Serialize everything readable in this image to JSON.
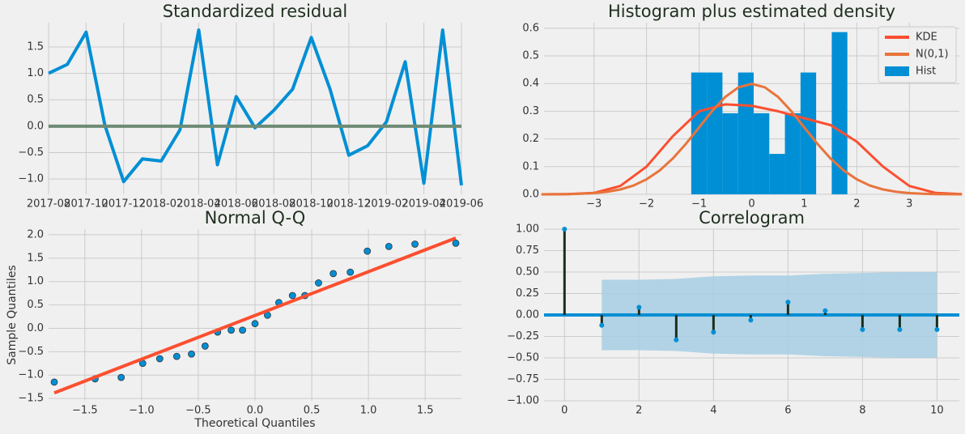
{
  "chart_data": [
    {
      "type": "line",
      "title": "Standardized residual",
      "x": [
        "2017-08",
        "2017-09",
        "2017-10",
        "2017-11",
        "2017-12",
        "2018-01",
        "2018-02",
        "2018-03",
        "2018-04",
        "2018-05",
        "2018-06",
        "2018-07",
        "2018-08",
        "2018-09",
        "2018-10",
        "2018-11",
        "2018-12",
        "2019-01",
        "2019-02",
        "2019-03",
        "2019-04",
        "2019-05",
        "2019-06"
      ],
      "series": [
        {
          "color": "#008fd5",
          "values": [
            1.0,
            1.17,
            1.78,
            0.02,
            -1.05,
            -0.62,
            -0.66,
            -0.07,
            1.82,
            -0.73,
            0.56,
            -0.03,
            0.3,
            0.7,
            1.68,
            0.7,
            -0.55,
            -0.37,
            0.08,
            1.22,
            -1.08,
            1.82,
            -1.12
          ]
        }
      ],
      "hline": 0,
      "hline_color": "#6d8b74",
      "xlim": [
        "2017-08",
        "2019-06"
      ],
      "xticks": [
        "2017-08",
        "2017-10",
        "2017-12",
        "2018-02",
        "2018-04",
        "2018-06",
        "2018-08",
        "2018-10",
        "2018-12",
        "2019-02",
        "2019-04",
        "2019-06"
      ],
      "ylim": [
        -1.29,
        1.96
      ],
      "yticks": [
        {
          "value": -1,
          "label": "−1.0"
        },
        {
          "value": -0.5,
          "label": "−0.5"
        },
        {
          "value": 0,
          "label": "0.0"
        },
        0.5,
        {
          "value": 1,
          "label": "1.0"
        },
        1.5
      ],
      "grid": true
    },
    {
      "type": "histogram",
      "title": "Histogram plus estimated density",
      "hist": {
        "name": "Hist",
        "color": "#008fd5",
        "bins": [
          -1.15,
          -0.853,
          -0.556,
          -0.259,
          0.038,
          0.335,
          0.632,
          0.929,
          1.226,
          1.523,
          1.82
        ],
        "values": [
          0.44,
          0.44,
          0.293,
          0.44,
          0.293,
          0.146,
          0.293,
          0.44,
          0,
          0.586
        ]
      },
      "series": [
        {
          "name": "KDE",
          "color": "#fc4f30",
          "x": [
            -4,
            -3.5,
            -3,
            -2.5,
            -2,
            -1.5,
            -1,
            -0.5,
            0,
            0.5,
            1,
            1.5,
            2,
            2.5,
            3,
            3.5,
            4
          ],
          "values": [
            0,
            0.001,
            0.005,
            0.03,
            0.1,
            0.21,
            0.3,
            0.325,
            0.32,
            0.3,
            0.275,
            0.25,
            0.19,
            0.1,
            0.03,
            0.005,
            0.001
          ]
        },
        {
          "name": "N(0,1)",
          "color": "#e8743b",
          "x": [
            -4,
            -3.75,
            -3.5,
            -3.25,
            -3,
            -2.75,
            -2.5,
            -2.25,
            -2,
            -1.75,
            -1.5,
            -1.25,
            -1,
            -0.75,
            -0.5,
            -0.25,
            0,
            0.25,
            0.5,
            0.75,
            1,
            1.25,
            1.5,
            1.75,
            2,
            2.25,
            2.5,
            2.75,
            3,
            3.25,
            3.5,
            3.75,
            4
          ],
          "values": [
            0.0001,
            0.0004,
            0.0009,
            0.002,
            0.0044,
            0.0091,
            0.0175,
            0.0317,
            0.054,
            0.0863,
            0.1295,
            0.1826,
            0.242,
            0.3011,
            0.3521,
            0.3867,
            0.3989,
            0.3867,
            0.3521,
            0.3011,
            0.242,
            0.1826,
            0.1295,
            0.0863,
            0.054,
            0.0317,
            0.0175,
            0.0091,
            0.0044,
            0.002,
            0.0009,
            0.0004,
            0.0001
          ]
        }
      ],
      "legend": "upper right",
      "xlim": [
        -3.95,
        3.95
      ],
      "xticks": [
        {
          "value": -3,
          "label": "−3"
        },
        {
          "value": -2,
          "label": "−2"
        },
        {
          "value": -1,
          "label": "−1"
        },
        0,
        1,
        2,
        3
      ],
      "ylim": [
        0,
        0.62
      ],
      "yticks": [
        {
          "value": 0,
          "label": "0.0"
        },
        0.1,
        0.2,
        0.3,
        0.4,
        0.5,
        0.6
      ],
      "grid": true
    },
    {
      "type": "scatter",
      "title": "Normal Q-Q",
      "xlabel": "Theoretical Quantiles",
      "ylabel": "Sample Quantiles",
      "x": [
        -1.77,
        -1.41,
        -1.18,
        -0.99,
        -0.84,
        -0.69,
        -0.56,
        -0.44,
        -0.33,
        -0.21,
        -0.11,
        0,
        0.11,
        0.21,
        0.33,
        0.44,
        0.56,
        0.69,
        0.84,
        0.99,
        1.18,
        1.41,
        1.77
      ],
      "values": [
        -1.15,
        -1.08,
        -1.05,
        -0.75,
        -0.65,
        -0.6,
        -0.55,
        -0.38,
        -0.08,
        -0.04,
        -0.04,
        0.1,
        0.28,
        0.55,
        0.7,
        0.7,
        0.97,
        1.17,
        1.2,
        1.65,
        1.75,
        1.8,
        1.82
      ],
      "color": "#008fd5",
      "line": {
        "x": [
          -1.77,
          1.77
        ],
        "values": [
          -1.38,
          1.93
        ],
        "color": "#fc4f30"
      },
      "xlim": [
        -1.82,
        1.82
      ],
      "xticks": [
        {
          "value": -1.5,
          "label": "−1.5"
        },
        {
          "value": -1,
          "label": "−1.0"
        },
        {
          "value": -0.5,
          "label": "−0.5"
        },
        {
          "value": 0,
          "label": "0.0"
        },
        0.5,
        {
          "value": 1,
          "label": "1.0"
        },
        1.5
      ],
      "ylim": [
        -1.55,
        2.12
      ],
      "yticks": [
        {
          "value": -1.5,
          "label": "−1.5"
        },
        {
          "value": -1,
          "label": "−1.0"
        },
        {
          "value": -0.5,
          "label": "−0.5"
        },
        {
          "value": 0,
          "label": "0.0"
        },
        0.5,
        {
          "value": 1,
          "label": "1.0"
        },
        1.5,
        {
          "value": 2,
          "label": "2.0"
        }
      ],
      "grid": true
    },
    {
      "type": "stem",
      "title": "Correlogram",
      "x": [
        0,
        1,
        2,
        3,
        4,
        5,
        6,
        7,
        8,
        9,
        10
      ],
      "values": [
        1,
        -0.12,
        0.09,
        -0.29,
        -0.2,
        -0.06,
        0.15,
        0.05,
        -0.17,
        -0.17,
        -0.17
      ],
      "color": "#008fd5",
      "stem_color": "#1b2e1b",
      "hline": 0,
      "hline_color": "#008fd5",
      "band": {
        "color": "#a6cee3",
        "x": [
          1,
          2,
          3,
          4,
          5,
          6,
          7,
          8,
          9,
          10
        ],
        "upper": [
          0.41,
          0.41,
          0.42,
          0.45,
          0.46,
          0.46,
          0.48,
          0.49,
          0.5,
          0.5
        ],
        "lower": [
          -0.41,
          -0.41,
          -0.42,
          -0.45,
          -0.46,
          -0.46,
          -0.48,
          -0.49,
          -0.5,
          -0.5
        ]
      },
      "xlim": [
        -0.55,
        10.6
      ],
      "xticks": [
        0,
        2,
        4,
        6,
        8,
        10
      ],
      "ylim": [
        -1,
        1
      ],
      "yticks": [
        {
          "value": -1,
          "label": "−1.00"
        },
        {
          "value": -0.75,
          "label": "−0.75"
        },
        {
          "value": -0.5,
          "label": "−0.50"
        },
        {
          "value": -0.25,
          "label": "−0.25"
        },
        {
          "value": 0,
          "label": "0.00"
        },
        {
          "value": 0.25,
          "label": "0.25"
        },
        {
          "value": 0.5,
          "label": "0.50"
        },
        {
          "value": 0.75,
          "label": "0.75"
        },
        {
          "value": 1,
          "label": "1.00"
        }
      ],
      "grid": true
    }
  ]
}
